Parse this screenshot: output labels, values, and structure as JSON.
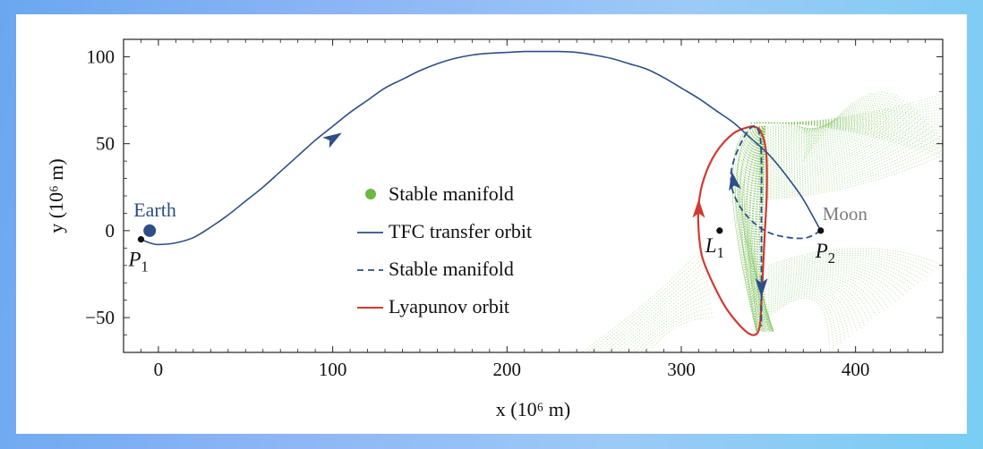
{
  "chart_data": {
    "type": "line",
    "xlabel": "x (10⁶ m)",
    "ylabel": "y (10⁶ m)",
    "xlim": [
      -20,
      450
    ],
    "ylim": [
      -70,
      110
    ],
    "x_ticks": [
      0,
      100,
      200,
      300,
      400
    ],
    "x_tick_labels": [
      "0",
      "100",
      "200",
      "300",
      "400"
    ],
    "y_ticks": [
      -50,
      0,
      50,
      100
    ],
    "y_tick_labels": [
      "−50",
      "0",
      "50",
      "100"
    ],
    "legend": {
      "placement": "center",
      "entries": [
        {
          "label": "Stable manifold",
          "style": "green-dot"
        },
        {
          "label": "TFC transfer orbit",
          "style": "blue-solid"
        },
        {
          "label": "Stable manifold",
          "style": "blue-dashed"
        },
        {
          "label": "Lyapunov orbit",
          "style": "red-solid"
        }
      ]
    },
    "points": [
      {
        "name": "Earth",
        "label": "Earth",
        "x": -5,
        "y": 0
      },
      {
        "name": "P1",
        "label": "P",
        "sub": "1",
        "x": -10,
        "y": -5
      },
      {
        "name": "L1",
        "label": "L",
        "sub": "1",
        "x": 322,
        "y": 0
      },
      {
        "name": "P2",
        "label": "P",
        "sub": "2",
        "x": 380,
        "y": 0
      },
      {
        "name": "Moon",
        "label": "Moon",
        "x": 380,
        "y": 0
      }
    ],
    "series": [
      {
        "name": "TFC transfer orbit",
        "color": "#2d4e86",
        "x": [
          -10,
          -5,
          0,
          10,
          20,
          30,
          40,
          50,
          60,
          70,
          80,
          90,
          100,
          110,
          120,
          130,
          140,
          150,
          160,
          170,
          180,
          190,
          200,
          210,
          220,
          230,
          240,
          250,
          260,
          270,
          280,
          290,
          300,
          310,
          320,
          330,
          340,
          350,
          360,
          370,
          380
        ],
        "y": [
          -5,
          -7,
          -8,
          -7,
          -4,
          2,
          9,
          17,
          25,
          34,
          43,
          52,
          60,
          68,
          75,
          82,
          87,
          92,
          96,
          99,
          101,
          102,
          102.5,
          103,
          103,
          103,
          102.5,
          101,
          99,
          96,
          93,
          88,
          82,
          76,
          69,
          62,
          53,
          44,
          32,
          18,
          0
        ]
      },
      {
        "name": "Stable manifold",
        "color": "#2d4e86",
        "x": [
          380,
          372,
          362,
          350,
          340,
          333,
          329,
          329,
          334,
          341,
          345,
          346,
          346,
          346,
          346,
          346,
          346
        ],
        "y": [
          0,
          -4,
          -4,
          -1,
          6,
          15,
          25,
          36,
          50,
          60,
          55,
          40,
          20,
          0,
          -20,
          -35,
          -55
        ]
      },
      {
        "name": "Lyapunov orbit",
        "color": "#d13a30",
        "x": [
          340,
          330,
          320,
          313,
          310,
          310,
          312,
          318,
          326,
          336,
          342,
          345,
          346,
          347,
          348,
          349,
          349,
          348,
          346,
          344,
          340
        ],
        "y": [
          60,
          56,
          45,
          30,
          15,
          0,
          -15,
          -30,
          -45,
          -57,
          -60,
          -55,
          -40,
          -20,
          0,
          20,
          40,
          50,
          56,
          59,
          60
        ]
      }
    ]
  }
}
